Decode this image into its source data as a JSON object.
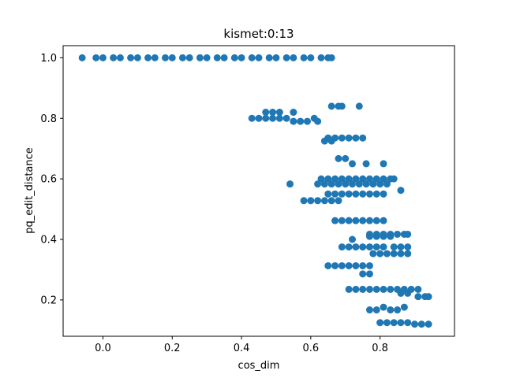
{
  "chart_data": {
    "type": "scatter",
    "title": "kismet:0:13",
    "xlabel": "cos_dim",
    "ylabel": "pq_edit_distance",
    "xlim": [
      -0.115,
      1.015
    ],
    "ylim": [
      0.08,
      1.04
    ],
    "xticks": [
      0.0,
      0.2,
      0.4,
      0.6,
      0.8
    ],
    "xtick_labels": [
      "0.0",
      "0.2",
      "0.4",
      "0.6",
      "0.8"
    ],
    "yticks": [
      0.2,
      0.4,
      0.6,
      0.8,
      1.0
    ],
    "ytick_labels": [
      "0.2",
      "0.4",
      "0.6",
      "0.8",
      "1.0"
    ],
    "grid": false,
    "legend": "none",
    "marker_color": "#1f77b4",
    "series": [
      {
        "x": [
          -0.06,
          -0.02,
          0.0,
          0.03,
          0.05,
          0.08,
          0.1,
          0.13,
          0.15,
          0.18,
          0.2,
          0.23,
          0.25,
          0.28,
          0.3,
          0.33,
          0.35,
          0.38,
          0.4,
          0.43,
          0.45,
          0.48,
          0.5,
          0.53,
          0.55,
          0.58,
          0.6,
          0.63,
          0.65,
          0.66,
          0.43,
          0.45,
          0.47,
          0.49,
          0.51,
          0.53,
          0.55,
          0.57,
          0.59,
          0.61,
          0.62,
          0.47,
          0.49,
          0.51,
          0.55,
          0.66,
          0.68,
          0.69,
          0.74,
          0.65,
          0.67,
          0.69,
          0.71,
          0.73,
          0.75,
          0.64,
          0.66,
          0.7,
          0.68,
          0.72,
          0.76,
          0.81,
          0.63,
          0.65,
          0.67,
          0.69,
          0.71,
          0.73,
          0.75,
          0.77,
          0.79,
          0.81,
          0.83,
          0.84,
          0.54,
          0.62,
          0.64,
          0.66,
          0.68,
          0.7,
          0.72,
          0.74,
          0.76,
          0.78,
          0.8,
          0.82,
          0.65,
          0.67,
          0.69,
          0.71,
          0.73,
          0.75,
          0.77,
          0.79,
          0.81,
          0.86,
          0.58,
          0.6,
          0.62,
          0.64,
          0.66,
          0.68,
          0.67,
          0.69,
          0.71,
          0.73,
          0.75,
          0.77,
          0.79,
          0.81,
          0.77,
          0.79,
          0.81,
          0.83,
          0.85,
          0.87,
          0.88,
          0.72,
          0.77,
          0.79,
          0.81,
          0.83,
          0.69,
          0.71,
          0.73,
          0.75,
          0.77,
          0.79,
          0.81,
          0.84,
          0.86,
          0.88,
          0.78,
          0.8,
          0.82,
          0.84,
          0.86,
          0.88,
          0.65,
          0.67,
          0.69,
          0.71,
          0.73,
          0.75,
          0.77,
          0.75,
          0.77,
          0.71,
          0.73,
          0.75,
          0.77,
          0.79,
          0.81,
          0.83,
          0.85,
          0.87,
          0.89,
          0.91,
          0.86,
          0.88,
          0.91,
          0.93,
          0.94,
          0.77,
          0.79,
          0.81,
          0.83,
          0.85,
          0.87,
          0.8,
          0.82,
          0.84,
          0.86,
          0.88,
          0.9,
          0.92,
          0.94
        ],
        "y": [
          1.0,
          1.0,
          1.0,
          1.0,
          1.0,
          1.0,
          1.0,
          1.0,
          1.0,
          1.0,
          1.0,
          1.0,
          1.0,
          1.0,
          1.0,
          1.0,
          1.0,
          1.0,
          1.0,
          1.0,
          1.0,
          1.0,
          1.0,
          1.0,
          1.0,
          1.0,
          1.0,
          1.0,
          1.0,
          1.0,
          0.8,
          0.8,
          0.8,
          0.8,
          0.8,
          0.8,
          0.79,
          0.79,
          0.79,
          0.8,
          0.79,
          0.82,
          0.82,
          0.82,
          0.82,
          0.84,
          0.84,
          0.84,
          0.84,
          0.735,
          0.735,
          0.735,
          0.735,
          0.735,
          0.735,
          0.725,
          0.725,
          0.667,
          0.667,
          0.65,
          0.65,
          0.65,
          0.6,
          0.6,
          0.6,
          0.6,
          0.6,
          0.6,
          0.6,
          0.6,
          0.6,
          0.6,
          0.6,
          0.6,
          0.583,
          0.583,
          0.583,
          0.583,
          0.583,
          0.583,
          0.583,
          0.583,
          0.583,
          0.583,
          0.583,
          0.583,
          0.55,
          0.55,
          0.55,
          0.55,
          0.55,
          0.55,
          0.55,
          0.55,
          0.55,
          0.562,
          0.528,
          0.528,
          0.528,
          0.528,
          0.528,
          0.528,
          0.462,
          0.462,
          0.462,
          0.462,
          0.462,
          0.462,
          0.462,
          0.462,
          0.417,
          0.417,
          0.417,
          0.417,
          0.417,
          0.417,
          0.417,
          0.4,
          0.41,
          0.41,
          0.41,
          0.41,
          0.375,
          0.375,
          0.375,
          0.375,
          0.375,
          0.375,
          0.375,
          0.375,
          0.375,
          0.375,
          0.353,
          0.353,
          0.353,
          0.353,
          0.353,
          0.353,
          0.313,
          0.313,
          0.313,
          0.313,
          0.313,
          0.313,
          0.313,
          0.286,
          0.286,
          0.235,
          0.235,
          0.235,
          0.235,
          0.235,
          0.235,
          0.235,
          0.235,
          0.235,
          0.235,
          0.235,
          0.222,
          0.222,
          0.211,
          0.211,
          0.211,
          0.167,
          0.167,
          0.176,
          0.167,
          0.167,
          0.176,
          0.125,
          0.125,
          0.125,
          0.125,
          0.125,
          0.12,
          0.12,
          0.12
        ]
      }
    ]
  }
}
